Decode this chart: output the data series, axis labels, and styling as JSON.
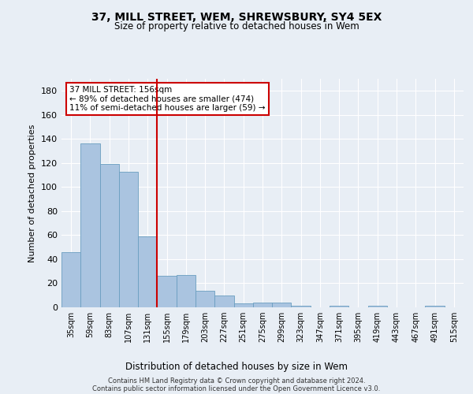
{
  "title1": "37, MILL STREET, WEM, SHREWSBURY, SY4 5EX",
  "title2": "Size of property relative to detached houses in Wem",
  "xlabel": "Distribution of detached houses by size in Wem",
  "ylabel": "Number of detached properties",
  "categories": [
    "35sqm",
    "59sqm",
    "83sqm",
    "107sqm",
    "131sqm",
    "155sqm",
    "179sqm",
    "203sqm",
    "227sqm",
    "251sqm",
    "275sqm",
    "299sqm",
    "323sqm",
    "347sqm",
    "371sqm",
    "395sqm",
    "419sqm",
    "443sqm",
    "467sqm",
    "491sqm",
    "515sqm"
  ],
  "values": [
    46,
    136,
    119,
    113,
    59,
    26,
    27,
    14,
    10,
    3,
    4,
    4,
    1,
    0,
    1,
    0,
    1,
    0,
    0,
    1,
    0
  ],
  "bar_color": "#aac4e0",
  "bar_edge_color": "#6a9ec0",
  "vline_color": "#cc0000",
  "annotation_title": "37 MILL STREET: 156sqm",
  "annotation_line1": "← 89% of detached houses are smaller (474)",
  "annotation_line2": "11% of semi-detached houses are larger (59) →",
  "annotation_box_color": "#ffffff",
  "annotation_box_edgecolor": "#cc0000",
  "ylim": [
    0,
    190
  ],
  "yticks": [
    0,
    20,
    40,
    60,
    80,
    100,
    120,
    140,
    160,
    180
  ],
  "footer1": "Contains HM Land Registry data © Crown copyright and database right 2024.",
  "footer2": "Contains public sector information licensed under the Open Government Licence v3.0.",
  "background_color": "#e8eef5",
  "plot_background": "#e8eef5"
}
